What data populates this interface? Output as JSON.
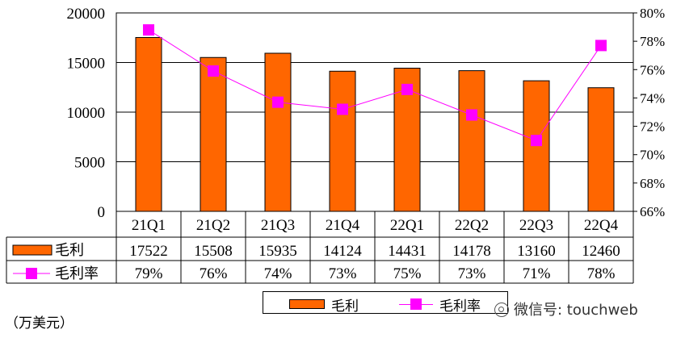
{
  "chart_data": {
    "type": "bar",
    "categories": [
      "21Q1",
      "21Q2",
      "21Q3",
      "21Q4",
      "22Q1",
      "22Q2",
      "22Q3",
      "22Q4"
    ],
    "series": [
      {
        "name": "毛利",
        "type": "bar",
        "axis": "left",
        "color": "#ff6600",
        "values": [
          17522,
          15508,
          15935,
          14124,
          14431,
          14178,
          13160,
          12460
        ]
      },
      {
        "name": "毛利率",
        "type": "line",
        "axis": "right",
        "color": "#ff00ff",
        "values": [
          78.8,
          75.9,
          73.7,
          73.2,
          74.6,
          72.8,
          71.0,
          77.7
        ],
        "labels": [
          "79%",
          "76%",
          "74%",
          "73%",
          "75%",
          "73%",
          "71%",
          "78%"
        ]
      }
    ],
    "y_left": {
      "min": 0,
      "max": 20000,
      "ticks": [
        "0",
        "5000",
        "10000",
        "15000",
        "20000"
      ]
    },
    "y_right": {
      "min": 66,
      "max": 80,
      "ticks": [
        "66%",
        "68%",
        "70%",
        "72%",
        "74%",
        "76%",
        "78%",
        "80%"
      ]
    },
    "grid": true,
    "legend": "bottom-center",
    "data_table": true,
    "unit_note": "（万美元）"
  },
  "watermark": "微信号: touchweb"
}
